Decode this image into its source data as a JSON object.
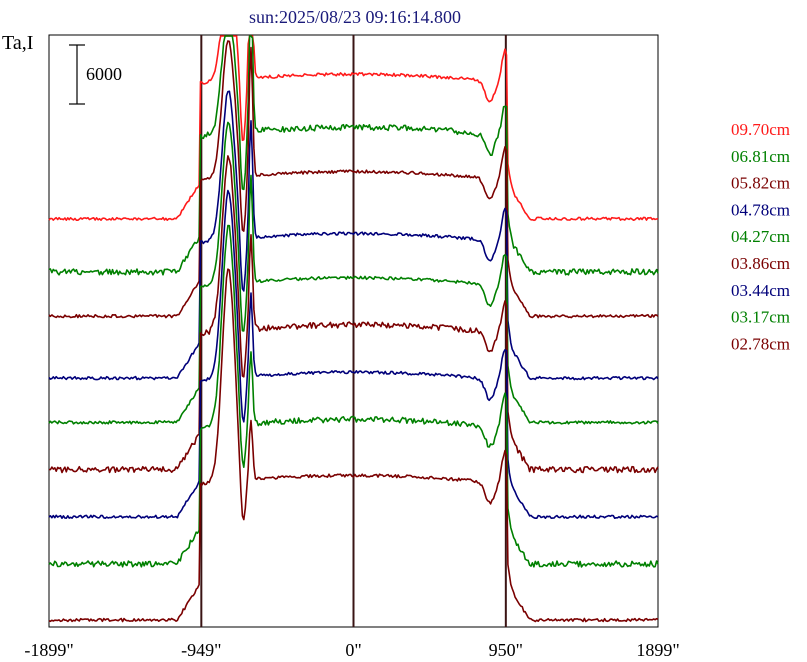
{
  "chart_data": {
    "type": "line",
    "title": "sun:2025/08/23 09:16:14.800",
    "title_color": "#1a1a7a",
    "ylabel": "Ta,I",
    "scale_bar_label": "6000",
    "x_ticks": [
      "-1899\"",
      "-949\"",
      "0\"",
      "950\"",
      "1899\""
    ],
    "x_range": [
      -1899,
      1899
    ],
    "vertical_markers": [
      -949,
      0,
      950
    ],
    "marker_color": "#3a1414",
    "series": [
      {
        "name": "09.70cm",
        "color": "#ff1a1a",
        "offset": 6.8
      },
      {
        "name": "06.81cm",
        "color": "#008000",
        "offset": 5.9
      },
      {
        "name": "05.82cm",
        "color": "#7a0000",
        "offset": 5.15
      },
      {
        "name": "04.78cm",
        "color": "#00007a",
        "offset": 4.1
      },
      {
        "name": "04.27cm",
        "color": "#008000",
        "offset": 3.35
      },
      {
        "name": "03.86cm",
        "color": "#7a0000",
        "offset": 2.55
      },
      {
        "name": "03.44cm",
        "color": "#00007a",
        "offset": 1.75
      },
      {
        "name": "03.17cm",
        "color": "#008000",
        "offset": 0.95
      },
      {
        "name": "02.78cm",
        "color": "#7a0000",
        "offset": 0.0
      }
    ]
  }
}
